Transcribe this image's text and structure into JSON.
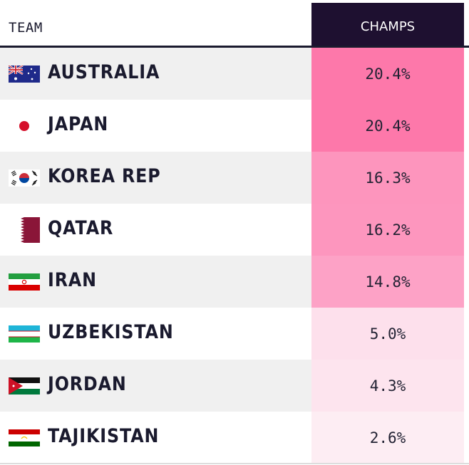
{
  "header": {
    "team_label": "TEAM",
    "champs_label": "CHAMPS"
  },
  "rows": [
    {
      "team": "AUSTRALIA",
      "champs": "20.4%",
      "flag": "australia-flag",
      "bg": "#f0f0f0",
      "cell": "#fd78aa"
    },
    {
      "team": "JAPAN",
      "champs": "20.4%",
      "flag": "japan-flag",
      "bg": "#ffffff",
      "cell": "#fd78aa"
    },
    {
      "team": "KOREA REP",
      "champs": "16.3%",
      "flag": "korea-flag",
      "bg": "#f0f0f0",
      "cell": "#fd95bd"
    },
    {
      "team": "QATAR",
      "champs": "16.2%",
      "flag": "qatar-flag",
      "bg": "#ffffff",
      "cell": "#fd96be"
    },
    {
      "team": "IRAN",
      "champs": "14.8%",
      "flag": "iran-flag",
      "bg": "#f0f0f0",
      "cell": "#fda2c6"
    },
    {
      "team": "UZBEKISTAN",
      "champs": "5.0%",
      "flag": "uzbekistan-flag",
      "bg": "#ffffff",
      "cell": "#fde0ec"
    },
    {
      "team": "JORDAN",
      "champs": "4.3%",
      "flag": "jordan-flag",
      "bg": "#f0f0f0",
      "cell": "#fde4ee"
    },
    {
      "team": "TAJIKISTAN",
      "champs": "2.6%",
      "flag": "tajikistan-flag",
      "bg": "#ffffff",
      "cell": "#fdedf3"
    }
  ]
}
